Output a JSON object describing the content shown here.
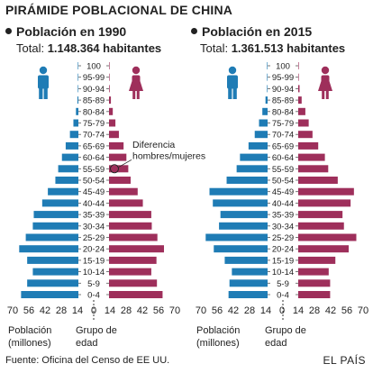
{
  "title": "PIRÁMIDE POBLACIONAL DE CHINA",
  "footer": "Fuente: Oficina del Censo de EE UU.",
  "brand": "EL PAÍS",
  "colors": {
    "male": "#1f7cb5",
    "female": "#9e2f5b",
    "axis": "#333333"
  },
  "chart_data": {
    "type": "bar",
    "orientation": "horizontal",
    "age_groups": [
      "100",
      "95-99",
      "90-94",
      "85-89",
      "80-84",
      "75-79",
      "70-74",
      "65-69",
      "60-64",
      "55-59",
      "50-54",
      "45-49",
      "40-44",
      "35-39",
      "30-34",
      "25-29",
      "20-24",
      "15-19",
      "10-14",
      "5-9",
      "0-4"
    ],
    "xticks": [
      "70",
      "56",
      "42",
      "28",
      "14",
      "0",
      "14",
      "28",
      "42",
      "56",
      "70"
    ],
    "xlabel": "Población (millones)",
    "ylabel": "Grupo de edad",
    "xlim": [
      0,
      70
    ],
    "panels": [
      {
        "subtitle": "Población en 1990",
        "total_label": "Total:",
        "total_value": "1.148.364 habitantes",
        "annotation": "Diferencia hombres/mujeres",
        "annotation_age": "55-59",
        "series": [
          {
            "name": "Hombres",
            "values": [
              0.01,
              0.06,
              0.3,
              1.0,
              2.6,
              5.3,
              9.0,
              13.5,
              17.5,
              21.5,
              24.5,
              32.5,
              38.5,
              47.5,
              48.5,
              56.0,
              63.0,
              54.5,
              48.5,
              54.5,
              61.0
            ]
          },
          {
            "name": "Mujeres",
            "values": [
              0.03,
              0.15,
              0.7,
              2.0,
              4.0,
              6.8,
              10.5,
              15.5,
              18.5,
              20.5,
              23.0,
              30.5,
              36.0,
              45.0,
              45.5,
              51.5,
              58.5,
              50.5,
              45.0,
              51.0,
              57.0
            ]
          }
        ]
      },
      {
        "subtitle": "Población en 2015",
        "total_label": "Total:",
        "total_value": "1.361.513 habitantes",
        "annotation": "",
        "series": [
          {
            "name": "Hombres",
            "values": [
              0.02,
              0.1,
              0.6,
              2.2,
              5.5,
              9.0,
              13.5,
              20.0,
              29.0,
              32.5,
              43.0,
              61.0,
              57.5,
              49.5,
              51.0,
              65.0,
              56.5,
              45.0,
              37.5,
              40.0,
              41.0
            ]
          },
          {
            "name": "Mujeres",
            "values": [
              0.05,
              0.35,
              1.4,
              3.6,
              7.5,
              11.0,
              15.0,
              21.0,
              28.0,
              31.5,
              41.5,
              58.5,
              55.0,
              46.5,
              48.0,
              61.0,
              53.0,
              39.0,
              32.0,
              33.5,
              33.5
            ]
          }
        ]
      }
    ]
  }
}
